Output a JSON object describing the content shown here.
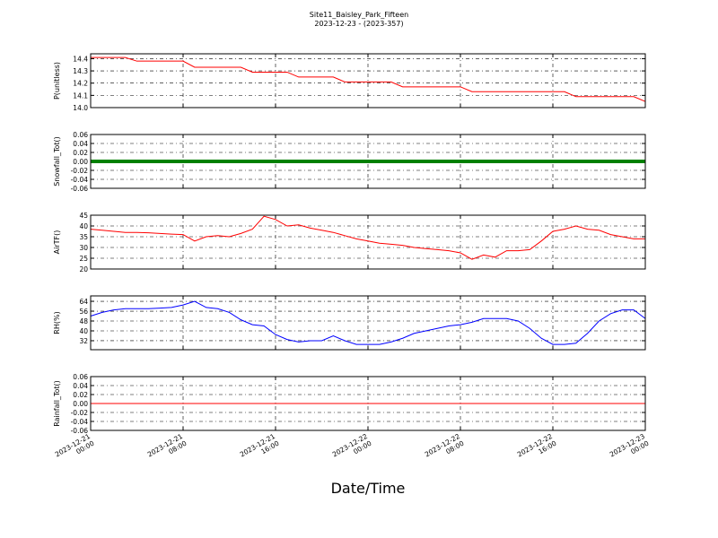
{
  "title": "Site11_Baisley_Park_Fifteen",
  "subtitle": "2023-12-23 - (2023-357)",
  "xlabel": "Date/Time",
  "chart_data": [
    {
      "type": "line",
      "ylabel": "P(unitless)",
      "grid": true,
      "x": [
        "2023-12-21 00:00",
        "2023-12-21 01:00",
        "2023-12-21 02:00",
        "2023-12-21 03:00",
        "2023-12-21 04:00",
        "2023-12-21 05:00",
        "2023-12-21 06:00",
        "2023-12-21 07:00",
        "2023-12-21 08:00",
        "2023-12-21 09:00",
        "2023-12-21 10:00",
        "2023-12-21 11:00",
        "2023-12-21 12:00",
        "2023-12-21 13:00",
        "2023-12-21 14:00",
        "2023-12-21 15:00",
        "2023-12-21 16:00",
        "2023-12-21 17:00",
        "2023-12-21 18:00",
        "2023-12-21 19:00",
        "2023-12-21 20:00",
        "2023-12-21 21:00",
        "2023-12-21 22:00",
        "2023-12-21 23:00",
        "2023-12-22 00:00",
        "2023-12-22 01:00",
        "2023-12-22 02:00",
        "2023-12-22 03:00",
        "2023-12-22 04:00",
        "2023-12-22 05:00",
        "2023-12-22 06:00",
        "2023-12-22 07:00",
        "2023-12-22 08:00",
        "2023-12-22 09:00",
        "2023-12-22 10:00",
        "2023-12-22 11:00",
        "2023-12-22 12:00",
        "2023-12-22 13:00",
        "2023-12-22 14:00",
        "2023-12-22 15:00",
        "2023-12-22 16:00",
        "2023-12-22 17:00",
        "2023-12-22 18:00",
        "2023-12-22 19:00",
        "2023-12-22 20:00",
        "2023-12-22 21:00",
        "2023-12-22 22:00",
        "2023-12-22 23:00",
        "2023-12-23 00:00"
      ],
      "series": [
        {
          "color": "#ff0000",
          "values": [
            14.41,
            14.41,
            14.41,
            14.41,
            14.38,
            14.38,
            14.38,
            14.38,
            14.38,
            14.33,
            14.33,
            14.33,
            14.33,
            14.33,
            14.29,
            14.29,
            14.29,
            14.29,
            14.25,
            14.25,
            14.25,
            14.25,
            14.21,
            14.21,
            14.21,
            14.21,
            14.21,
            14.17,
            14.17,
            14.17,
            14.17,
            14.17,
            14.17,
            14.13,
            14.13,
            14.13,
            14.13,
            14.13,
            14.13,
            14.13,
            14.13,
            14.13,
            14.09,
            14.09,
            14.09,
            14.09,
            14.09,
            14.09,
            14.05
          ]
        }
      ],
      "xlim": [
        "2023-12-21 00:00",
        "2023-12-23 00:00"
      ],
      "xticks": [
        "2023-12-21 00:00",
        "2023-12-21 08:00",
        "2023-12-21 16:00",
        "2023-12-22 00:00",
        "2023-12-22 08:00",
        "2023-12-22 16:00",
        "2023-12-23 00:00"
      ],
      "ylim": [
        14.0,
        14.44
      ],
      "yticks": [
        {
          "value": 14.0,
          "label": "14.0"
        },
        14.1,
        14.2,
        14.3,
        14.4
      ]
    },
    {
      "type": "line",
      "ylabel": "Snowfall_Tot()",
      "grid": true,
      "x": [
        "2023-12-21 00:00",
        "2023-12-21 04:00",
        "2023-12-21 08:00",
        "2023-12-21 12:00",
        "2023-12-21 16:00",
        "2023-12-21 20:00",
        "2023-12-22 00:00",
        "2023-12-22 04:00",
        "2023-12-22 08:00",
        "2023-12-22 12:00",
        "2023-12-22 16:00",
        "2023-12-22 20:00",
        "2023-12-23 00:00"
      ],
      "series": [
        {
          "color": "#008000",
          "values": [
            0,
            0,
            0,
            0,
            0,
            0,
            0,
            0,
            0,
            0,
            0,
            0,
            0
          ]
        }
      ],
      "xlim": [
        "2023-12-21 00:00",
        "2023-12-23 00:00"
      ],
      "xticks": [
        "2023-12-21 00:00",
        "2023-12-21 08:00",
        "2023-12-21 16:00",
        "2023-12-22 00:00",
        "2023-12-22 08:00",
        "2023-12-22 16:00",
        "2023-12-23 00:00"
      ],
      "ylim": [
        -0.06,
        0.06
      ],
      "yticks": [
        -0.06,
        -0.04,
        -0.02,
        {
          "value": 0,
          "label": "0.00"
        },
        0.02,
        0.04,
        0.06
      ]
    },
    {
      "type": "line",
      "ylabel": "AirTF()",
      "grid": true,
      "x": [
        "2023-12-21 00:00",
        "2023-12-21 01:00",
        "2023-12-21 02:00",
        "2023-12-21 03:00",
        "2023-12-21 04:00",
        "2023-12-21 05:00",
        "2023-12-21 06:00",
        "2023-12-21 07:00",
        "2023-12-21 08:00",
        "2023-12-21 09:00",
        "2023-12-21 10:00",
        "2023-12-21 11:00",
        "2023-12-21 12:00",
        "2023-12-21 13:00",
        "2023-12-21 14:00",
        "2023-12-21 15:00",
        "2023-12-21 16:00",
        "2023-12-21 17:00",
        "2023-12-21 18:00",
        "2023-12-21 19:00",
        "2023-12-21 20:00",
        "2023-12-21 21:00",
        "2023-12-21 22:00",
        "2023-12-21 23:00",
        "2023-12-22 00:00",
        "2023-12-22 01:00",
        "2023-12-22 02:00",
        "2023-12-22 03:00",
        "2023-12-22 04:00",
        "2023-12-22 05:00",
        "2023-12-22 06:00",
        "2023-12-22 07:00",
        "2023-12-22 08:00",
        "2023-12-22 09:00",
        "2023-12-22 10:00",
        "2023-12-22 11:00",
        "2023-12-22 12:00",
        "2023-12-22 13:00",
        "2023-12-22 14:00",
        "2023-12-22 15:00",
        "2023-12-22 16:00",
        "2023-12-22 17:00",
        "2023-12-22 18:00",
        "2023-12-22 19:00",
        "2023-12-22 20:00",
        "2023-12-22 21:00",
        "2023-12-22 22:00",
        "2023-12-22 23:00",
        "2023-12-23 00:00"
      ],
      "series": [
        {
          "color": "#ff0000",
          "values": [
            38.5,
            38,
            37.5,
            37,
            37,
            36.8,
            36.5,
            36.2,
            36,
            33,
            35,
            35.5,
            35,
            36.5,
            38.5,
            44.5,
            43,
            40,
            40.5,
            39,
            38,
            37,
            35.5,
            34,
            33,
            32,
            31.5,
            31,
            30,
            29.5,
            29,
            28.5,
            27.5,
            24.5,
            26.5,
            25.5,
            28.5,
            28.5,
            29,
            33,
            37.5,
            38.5,
            40,
            38.5,
            38,
            36,
            35,
            34,
            34
          ]
        }
      ],
      "xlim": [
        "2023-12-21 00:00",
        "2023-12-23 00:00"
      ],
      "xticks": [
        "2023-12-21 00:00",
        "2023-12-21 08:00",
        "2023-12-21 16:00",
        "2023-12-22 00:00",
        "2023-12-22 08:00",
        "2023-12-22 16:00",
        "2023-12-23 00:00"
      ],
      "ylim": [
        20,
        45
      ],
      "yticks": [
        20,
        25,
        30,
        35,
        40,
        45
      ]
    },
    {
      "type": "line",
      "ylabel": "RH(%)",
      "grid": true,
      "x": [
        "2023-12-21 00:00",
        "2023-12-21 01:00",
        "2023-12-21 02:00",
        "2023-12-21 03:00",
        "2023-12-21 04:00",
        "2023-12-21 05:00",
        "2023-12-21 06:00",
        "2023-12-21 07:00",
        "2023-12-21 08:00",
        "2023-12-21 09:00",
        "2023-12-21 10:00",
        "2023-12-21 11:00",
        "2023-12-21 12:00",
        "2023-12-21 13:00",
        "2023-12-21 14:00",
        "2023-12-21 15:00",
        "2023-12-21 16:00",
        "2023-12-21 17:00",
        "2023-12-21 18:00",
        "2023-12-21 19:00",
        "2023-12-21 20:00",
        "2023-12-21 21:00",
        "2023-12-21 22:00",
        "2023-12-21 23:00",
        "2023-12-22 00:00",
        "2023-12-22 01:00",
        "2023-12-22 02:00",
        "2023-12-22 03:00",
        "2023-12-22 04:00",
        "2023-12-22 05:00",
        "2023-12-22 06:00",
        "2023-12-22 07:00",
        "2023-12-22 08:00",
        "2023-12-22 09:00",
        "2023-12-22 10:00",
        "2023-12-22 11:00",
        "2023-12-22 12:00",
        "2023-12-22 13:00",
        "2023-12-22 14:00",
        "2023-12-22 15:00",
        "2023-12-22 16:00",
        "2023-12-22 17:00",
        "2023-12-22 18:00",
        "2023-12-22 19:00",
        "2023-12-22 20:00",
        "2023-12-22 21:00",
        "2023-12-22 22:00",
        "2023-12-22 23:00",
        "2023-12-23 00:00"
      ],
      "series": [
        {
          "color": "#0000ff",
          "values": [
            52,
            55,
            57,
            58,
            58,
            58,
            58.5,
            59,
            61,
            64,
            59,
            58,
            55,
            49,
            45,
            44,
            37,
            33,
            31,
            32,
            32,
            36,
            32,
            29,
            29,
            29,
            31,
            34,
            38,
            40,
            42,
            44,
            45,
            47,
            50,
            50,
            50,
            48,
            42,
            34,
            29,
            29,
            30,
            38,
            48,
            54,
            57,
            57,
            50
          ]
        }
      ],
      "xlim": [
        "2023-12-21 00:00",
        "2023-12-23 00:00"
      ],
      "xticks": [
        "2023-12-21 00:00",
        "2023-12-21 08:00",
        "2023-12-21 16:00",
        "2023-12-22 00:00",
        "2023-12-22 08:00",
        "2023-12-22 16:00",
        "2023-12-23 00:00"
      ],
      "ylim": [
        24.7,
        68.4
      ],
      "yticks": [
        32,
        40,
        48,
        56,
        64
      ]
    },
    {
      "type": "line",
      "ylabel": "Rainfall_Tot()",
      "grid": true,
      "x": [
        "2023-12-21 00:00",
        "2023-12-21 04:00",
        "2023-12-21 08:00",
        "2023-12-21 12:00",
        "2023-12-21 16:00",
        "2023-12-21 20:00",
        "2023-12-22 00:00",
        "2023-12-22 04:00",
        "2023-12-22 08:00",
        "2023-12-22 12:00",
        "2023-12-22 16:00",
        "2023-12-22 20:00",
        "2023-12-23 00:00"
      ],
      "series": [
        {
          "color": "#ff0000",
          "values": [
            0,
            0,
            0,
            0,
            0,
            0,
            0,
            0,
            0,
            0,
            0,
            0,
            0
          ]
        }
      ],
      "xlim": [
        "2023-12-21 00:00",
        "2023-12-23 00:00"
      ],
      "xticks": [
        {
          "value": "2023-12-21 00:00",
          "label": "2023-12-21 00:00"
        },
        {
          "value": "2023-12-21 08:00",
          "label": "2023-12-21 08:00"
        },
        {
          "value": "2023-12-21 16:00",
          "label": "2023-12-21 16:00"
        },
        {
          "value": "2023-12-22 00:00",
          "label": "2023-12-22 00:00"
        },
        {
          "value": "2023-12-22 08:00",
          "label": "2023-12-22 08:00"
        },
        {
          "value": "2023-12-22 16:00",
          "label": "2023-12-22 16:00"
        },
        {
          "value": "2023-12-23 00:00",
          "label": "2023-12-23 00:00"
        }
      ],
      "ylim": [
        -0.06,
        0.06
      ],
      "yticks": [
        -0.06,
        -0.04,
        -0.02,
        {
          "value": 0,
          "label": "0.00"
        },
        0.02,
        0.04,
        0.06
      ]
    }
  ]
}
